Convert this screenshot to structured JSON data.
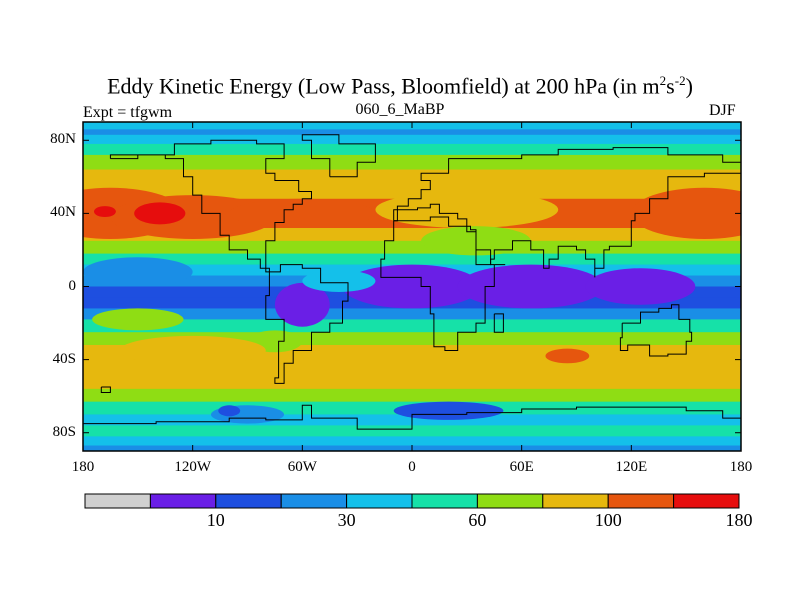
{
  "chart_data": {
    "type": "map",
    "title": "Eddy Kinetic Energy (Low Pass, Bloomfield) at 200 hPa (in m",
    "title_unit_sup1": "2",
    "title_unit_mid": "s",
    "title_unit_sup2": "-2",
    "title_close": ")",
    "left_label": "Expt = tfgwm",
    "center_label": "060_6_MaBP",
    "right_label": "DJF",
    "lon_range": [
      -180,
      180
    ],
    "lat_range": [
      -90,
      90
    ],
    "x_ticks": [
      {
        "lon": -180,
        "label": "180"
      },
      {
        "lon": -120,
        "label": "120W"
      },
      {
        "lon": -60,
        "label": "60W"
      },
      {
        "lon": 0,
        "label": "0"
      },
      {
        "lon": 60,
        "label": "60E"
      },
      {
        "lon": 120,
        "label": "120E"
      },
      {
        "lon": 180,
        "label": "180"
      }
    ],
    "y_ticks": [
      {
        "lat": 80,
        "label": "80N"
      },
      {
        "lat": 40,
        "label": "40N"
      },
      {
        "lat": 0,
        "label": "0"
      },
      {
        "lat": -40,
        "label": "40S"
      },
      {
        "lat": -80,
        "label": "80S"
      }
    ],
    "colorbar": {
      "colors": [
        "#d0d0d0",
        "#6a1fe6",
        "#1e4fe0",
        "#1a8ee6",
        "#14c0ea",
        "#16e1a8",
        "#8fdd14",
        "#e6b80e",
        "#e6560e",
        "#e60d0d"
      ],
      "labels": [
        {
          "index": 2,
          "label": "10"
        },
        {
          "index": 4,
          "label": "30"
        },
        {
          "index": 6,
          "label": "60"
        },
        {
          "index": 8,
          "label": "100"
        },
        {
          "index": 10,
          "label": "180"
        }
      ]
    },
    "field_bands": [
      {
        "lat": 90,
        "level": 4
      },
      {
        "lat": 86,
        "level": 3
      },
      {
        "lat": 83,
        "level": 4
      },
      {
        "lat": 78,
        "level": 5
      },
      {
        "lat": 72,
        "level": 6
      },
      {
        "lat": 64,
        "level": 7
      },
      {
        "lat": 56,
        "level": 7
      },
      {
        "lat": 48,
        "level": 8
      },
      {
        "lat": 40,
        "level": 8
      },
      {
        "lat": 32,
        "level": 7
      },
      {
        "lat": 25,
        "level": 6
      },
      {
        "lat": 18,
        "level": 5
      },
      {
        "lat": 12,
        "level": 4
      },
      {
        "lat": 6,
        "level": 3
      },
      {
        "lat": 0,
        "level": 2
      },
      {
        "lat": -6,
        "level": 2
      },
      {
        "lat": -12,
        "level": 3
      },
      {
        "lat": -18,
        "level": 5
      },
      {
        "lat": -25,
        "level": 6
      },
      {
        "lat": -32,
        "level": 7
      },
      {
        "lat": -40,
        "level": 7
      },
      {
        "lat": -48,
        "level": 7
      },
      {
        "lat": -56,
        "level": 6
      },
      {
        "lat": -63,
        "level": 5
      },
      {
        "lat": -70,
        "level": 4
      },
      {
        "lat": -76,
        "level": 5
      },
      {
        "lat": -82,
        "level": 4
      },
      {
        "lat": -87,
        "level": 3
      },
      {
        "lat": -90,
        "level": 2
      }
    ],
    "blobs": [
      {
        "lon": -165,
        "lat": 40,
        "rlon": 40,
        "rlat": 14,
        "level": 8
      },
      {
        "lon": -120,
        "lat": 38,
        "rlon": 45,
        "rlat": 12,
        "level": 8
      },
      {
        "lon": -138,
        "lat": 40,
        "rlon": 14,
        "rlat": 6,
        "level": 9
      },
      {
        "lon": -168,
        "lat": 41,
        "rlon": 6,
        "rlat": 3,
        "level": 9
      },
      {
        "lon": -60,
        "lat": 40,
        "rlon": 40,
        "rlat": 8,
        "level": 8
      },
      {
        "lon": 30,
        "lat": 42,
        "rlon": 50,
        "rlat": 10,
        "level": 7
      },
      {
        "lon": 160,
        "lat": 40,
        "rlon": 40,
        "rlat": 14,
        "level": 8
      },
      {
        "lon": 35,
        "lat": 25,
        "rlon": 30,
        "rlat": 8,
        "level": 6
      },
      {
        "lon": -150,
        "lat": 8,
        "rlon": 30,
        "rlat": 8,
        "level": 3
      },
      {
        "lon": 0,
        "lat": 0,
        "rlon": 38,
        "rlat": 12,
        "level": 1
      },
      {
        "lon": 65,
        "lat": 0,
        "rlon": 40,
        "rlat": 12,
        "level": 1
      },
      {
        "lon": 125,
        "lat": 0,
        "rlon": 30,
        "rlat": 10,
        "level": 1
      },
      {
        "lon": -60,
        "lat": -10,
        "rlon": 15,
        "rlat": 12,
        "level": 1
      },
      {
        "lon": -40,
        "lat": 3,
        "rlon": 20,
        "rlat": 6,
        "level": 4
      },
      {
        "lon": -150,
        "lat": -18,
        "rlon": 25,
        "rlat": 6,
        "level": 6
      },
      {
        "lon": -75,
        "lat": -30,
        "rlon": 15,
        "rlat": 6,
        "level": 6
      },
      {
        "lon": 85,
        "lat": -38,
        "rlon": 12,
        "rlat": 4,
        "level": 8
      },
      {
        "lon": -120,
        "lat": -35,
        "rlon": 40,
        "rlat": 8,
        "level": 7
      },
      {
        "lon": -90,
        "lat": -70,
        "rlon": 20,
        "rlat": 5,
        "level": 3
      },
      {
        "lon": 20,
        "lat": -68,
        "rlon": 30,
        "rlat": 5,
        "level": 2
      },
      {
        "lon": -100,
        "lat": -68,
        "rlon": 6,
        "rlat": 3,
        "level": 2
      }
    ],
    "coastlines": [
      [
        [
          -165,
          70
        ],
        [
          -150,
          72
        ],
        [
          -135,
          70
        ],
        [
          -125,
          60
        ],
        [
          -120,
          50
        ],
        [
          -115,
          40
        ],
        [
          -105,
          28
        ],
        [
          -100,
          20
        ],
        [
          -90,
          15
        ],
        [
          -83,
          10
        ],
        [
          -78,
          8
        ],
        [
          -80,
          25
        ],
        [
          -75,
          35
        ],
        [
          -70,
          42
        ],
        [
          -65,
          45
        ],
        [
          -60,
          48
        ],
        [
          -55,
          52
        ],
        [
          -62,
          58
        ],
        [
          -75,
          62
        ],
        [
          -80,
          70
        ],
        [
          -70,
          78
        ],
        [
          -85,
          80
        ],
        [
          -110,
          78
        ],
        [
          -130,
          72
        ],
        [
          -150,
          72
        ],
        [
          -165,
          70
        ]
      ],
      [
        [
          -78,
          8
        ],
        [
          -72,
          12
        ],
        [
          -60,
          10
        ],
        [
          -50,
          2
        ],
        [
          -35,
          -8
        ],
        [
          -38,
          -20
        ],
        [
          -45,
          -25
        ],
        [
          -55,
          -35
        ],
        [
          -65,
          -42
        ],
        [
          -70,
          -53
        ],
        [
          -75,
          -50
        ],
        [
          -73,
          -30
        ],
        [
          -70,
          -18
        ],
        [
          -80,
          -5
        ],
        [
          -78,
          8
        ]
      ],
      [
        [
          -45,
          60
        ],
        [
          -30,
          68
        ],
        [
          -20,
          78
        ],
        [
          -40,
          83
        ],
        [
          -60,
          80
        ],
        [
          -55,
          70
        ],
        [
          -45,
          60
        ]
      ],
      [
        [
          -10,
          36
        ],
        [
          10,
          38
        ],
        [
          20,
          33
        ],
        [
          32,
          31
        ],
        [
          35,
          20
        ],
        [
          43,
          12
        ],
        [
          51,
          12
        ],
        [
          45,
          0
        ],
        [
          40,
          -10
        ],
        [
          40,
          -20
        ],
        [
          35,
          -25
        ],
        [
          25,
          -35
        ],
        [
          18,
          -33
        ],
        [
          12,
          -15
        ],
        [
          10,
          0
        ],
        [
          5,
          5
        ],
        [
          -10,
          5
        ],
        [
          -17,
          15
        ],
        [
          -15,
          25
        ],
        [
          -10,
          36
        ]
      ],
      [
        [
          -10,
          36
        ],
        [
          -8,
          44
        ],
        [
          -2,
          48
        ],
        [
          5,
          53
        ],
        [
          10,
          58
        ],
        [
          5,
          62
        ],
        [
          20,
          70
        ],
        [
          40,
          70
        ],
        [
          60,
          72
        ],
        [
          80,
          75
        ],
        [
          110,
          76
        ],
        [
          140,
          72
        ],
        [
          170,
          68
        ],
        [
          180,
          66
        ],
        [
          180,
          62
        ],
        [
          160,
          60
        ],
        [
          140,
          58
        ],
        [
          140,
          48
        ],
        [
          130,
          40
        ],
        [
          122,
          36
        ],
        [
          120,
          30
        ],
        [
          120,
          22
        ],
        [
          108,
          20
        ],
        [
          105,
          10
        ],
        [
          100,
          5
        ],
        [
          100,
          15
        ],
        [
          95,
          20
        ],
        [
          90,
          22
        ],
        [
          80,
          15
        ],
        [
          75,
          10
        ],
        [
          72,
          20
        ],
        [
          65,
          25
        ],
        [
          57,
          25
        ],
        [
          55,
          20
        ],
        [
          45,
          15
        ],
        [
          43,
          12
        ],
        [
          35,
          30
        ],
        [
          30,
          37
        ],
        [
          25,
          40
        ],
        [
          15,
          45
        ],
        [
          10,
          43
        ],
        [
          3,
          42
        ],
        [
          -10,
          36
        ]
      ],
      [
        [
          115,
          -20
        ],
        [
          125,
          -14
        ],
        [
          135,
          -12
        ],
        [
          142,
          -10
        ],
        [
          146,
          -18
        ],
        [
          152,
          -25
        ],
        [
          153,
          -30
        ],
        [
          150,
          -37
        ],
        [
          140,
          -38
        ],
        [
          130,
          -32
        ],
        [
          118,
          -35
        ],
        [
          114,
          -28
        ],
        [
          115,
          -20
        ]
      ],
      [
        [
          -180,
          -75
        ],
        [
          -140,
          -74
        ],
        [
          -100,
          -72
        ],
        [
          -80,
          -73
        ],
        [
          -60,
          -65
        ],
        [
          -55,
          -72
        ],
        [
          -30,
          -78
        ],
        [
          0,
          -70
        ],
        [
          30,
          -69
        ],
        [
          60,
          -67
        ],
        [
          90,
          -66
        ],
        [
          120,
          -66
        ],
        [
          150,
          -68
        ],
        [
          170,
          -72
        ],
        [
          180,
          -78
        ]
      ],
      [
        [
          45,
          -15
        ],
        [
          50,
          -15
        ],
        [
          50,
          -25
        ],
        [
          45,
          -25
        ],
        [
          45,
          -15
        ]
      ],
      [
        [
          -170,
          -55
        ],
        [
          -165,
          -55
        ],
        [
          -165,
          -58
        ],
        [
          -170,
          -58
        ],
        [
          -170,
          -55
        ]
      ]
    ]
  }
}
